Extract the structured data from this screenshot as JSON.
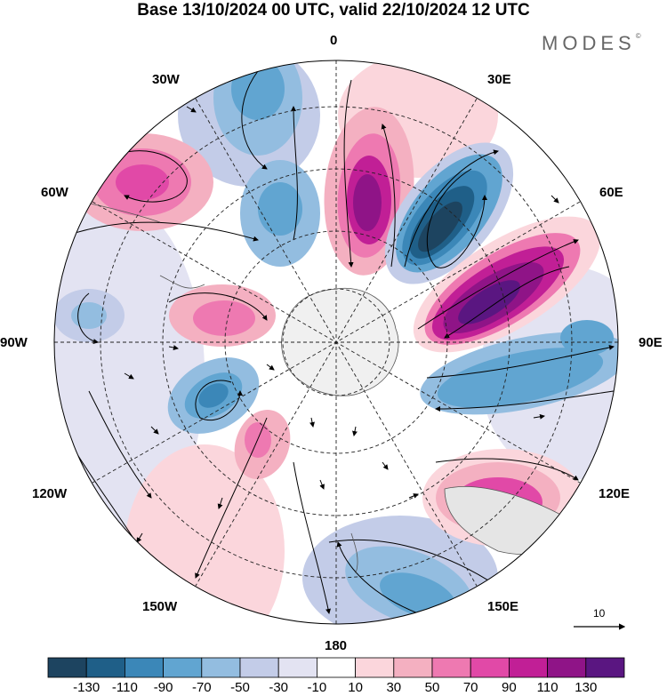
{
  "title": "Base 13/10/2024 00 UTC, valid 22/10/2024 12 UTC",
  "brand": "MODES",
  "brand_mark": "©",
  "longitude_labels": {
    "lon_0": "0",
    "lon_30w": "30W",
    "lon_30e": "30E",
    "lon_60w": "60W",
    "lon_60e": "60E",
    "lon_90w": "90W",
    "lon_90e": "90E",
    "lon_120w": "120W",
    "lon_120e": "120E",
    "lon_150w": "150W",
    "lon_150e": "150E",
    "lon_180": "180"
  },
  "reference_vector": "10",
  "colorbar": {
    "labels": [
      "-130",
      "-110",
      "-90",
      "-70",
      "-50",
      "-30",
      "-10",
      "10",
      "30",
      "50",
      "70",
      "90",
      "110",
      "130"
    ],
    "colors": [
      "#1d4460",
      "#1f5f88",
      "#3b87b8",
      "#61a5d1",
      "#93bde0",
      "#c3cce8",
      "#e3e3f2",
      "#ffffff",
      "#fbd6dc",
      "#f4b0c1",
      "#ee79b1",
      "#e149a7",
      "#c11f96",
      "#8f1487",
      "#5a1681"
    ]
  },
  "colors": {
    "land": "#e5e5e5",
    "antarctica": "#f0f0f0"
  }
}
